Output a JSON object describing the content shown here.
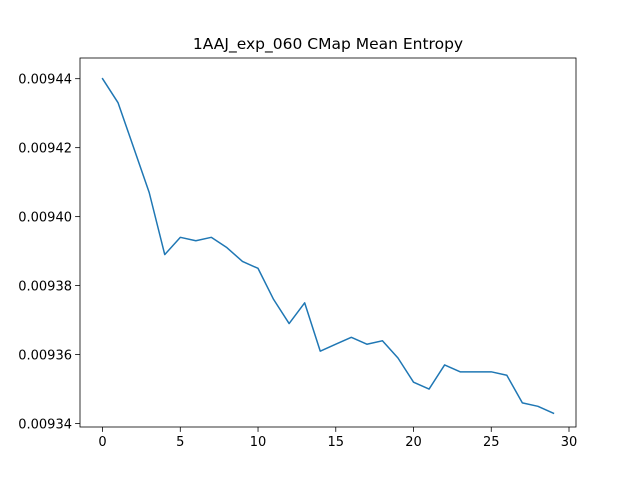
{
  "chart_data": {
    "type": "line",
    "title": "1AAJ_exp_060 CMap Mean Entropy",
    "xlabel": "",
    "ylabel": "",
    "xlim": [
      -1.45,
      30.45
    ],
    "ylim": [
      0.009339,
      0.009446
    ],
    "x_ticks": [
      0,
      5,
      10,
      15,
      20,
      25,
      30
    ],
    "x_tick_labels": [
      "0",
      "5",
      "10",
      "15",
      "20",
      "25",
      "30"
    ],
    "y_ticks": [
      0.00934,
      0.00936,
      0.00938,
      0.0094,
      0.00942,
      0.00944
    ],
    "y_tick_labels": [
      "0.00934",
      "0.00936",
      "0.00938",
      "0.00940",
      "0.00942",
      "0.00944"
    ],
    "grid": false,
    "series": [
      {
        "color": "#1f77b4",
        "x": [
          0,
          1,
          2,
          3,
          4,
          5,
          6,
          7,
          8,
          9,
          10,
          11,
          12,
          13,
          14,
          15,
          16,
          17,
          18,
          19,
          20,
          21,
          22,
          23,
          24,
          25,
          26,
          27,
          28,
          29
        ],
        "y": [
          0.00944,
          0.009433,
          0.00942,
          0.009407,
          0.009389,
          0.009394,
          0.009393,
          0.009394,
          0.009391,
          0.009387,
          0.009385,
          0.009376,
          0.009369,
          0.009375,
          0.009361,
          0.009363,
          0.009365,
          0.009363,
          0.009364,
          0.009359,
          0.009352,
          0.00935,
          0.009357,
          0.009355,
          0.009355,
          0.009355,
          0.009354,
          0.009346,
          0.009345,
          0.009343
        ]
      }
    ]
  }
}
